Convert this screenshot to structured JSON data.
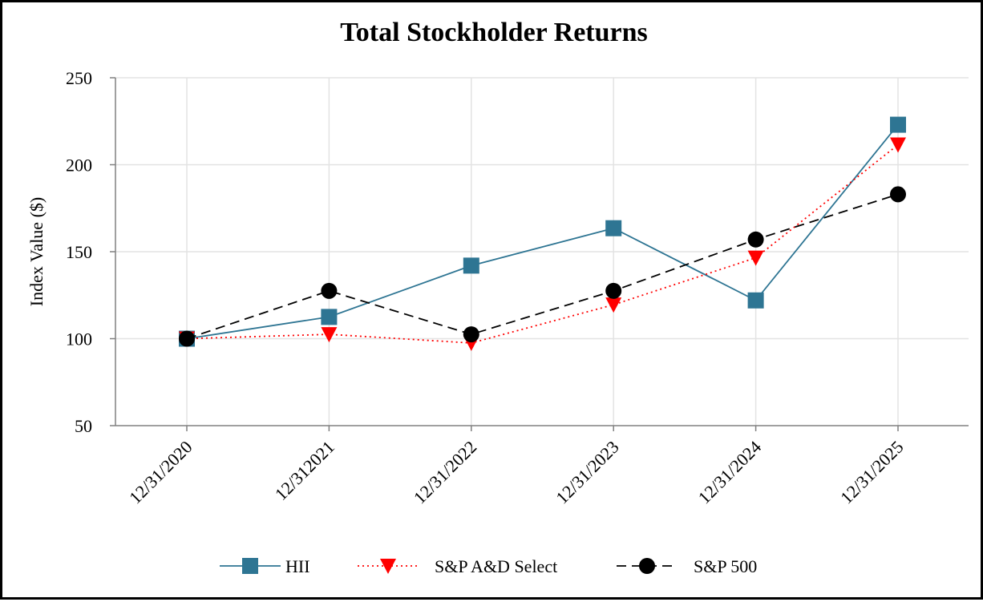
{
  "chart_data": {
    "type": "line",
    "title": "Total Stockholder Returns",
    "xlabel": "",
    "ylabel": "Index Value ($)",
    "categories": [
      "12/31/2020",
      "12/312021",
      "12/31/2022",
      "12/31/2023",
      "12/31/2024",
      "12/31/2025"
    ],
    "ylim": [
      50,
      250
    ],
    "yticks": [
      50,
      100,
      150,
      200,
      250
    ],
    "grid": true,
    "legend_position": "bottom",
    "series": [
      {
        "name": "HII",
        "values": [
          100,
          112.5,
          142,
          163.5,
          122,
          223
        ],
        "color": "#2e7593",
        "line_style": "solid",
        "marker": "square"
      },
      {
        "name": "S&P A&D Select",
        "values": [
          100,
          102.5,
          97.5,
          119.5,
          146.5,
          211.5
        ],
        "color": "#ff0000",
        "line_style": "dotted",
        "marker": "triangle-down"
      },
      {
        "name": "S&P 500",
        "values": [
          100,
          127.5,
          102.5,
          127.5,
          157,
          183
        ],
        "color": "#000000",
        "line_style": "dashed",
        "marker": "circle"
      }
    ]
  }
}
